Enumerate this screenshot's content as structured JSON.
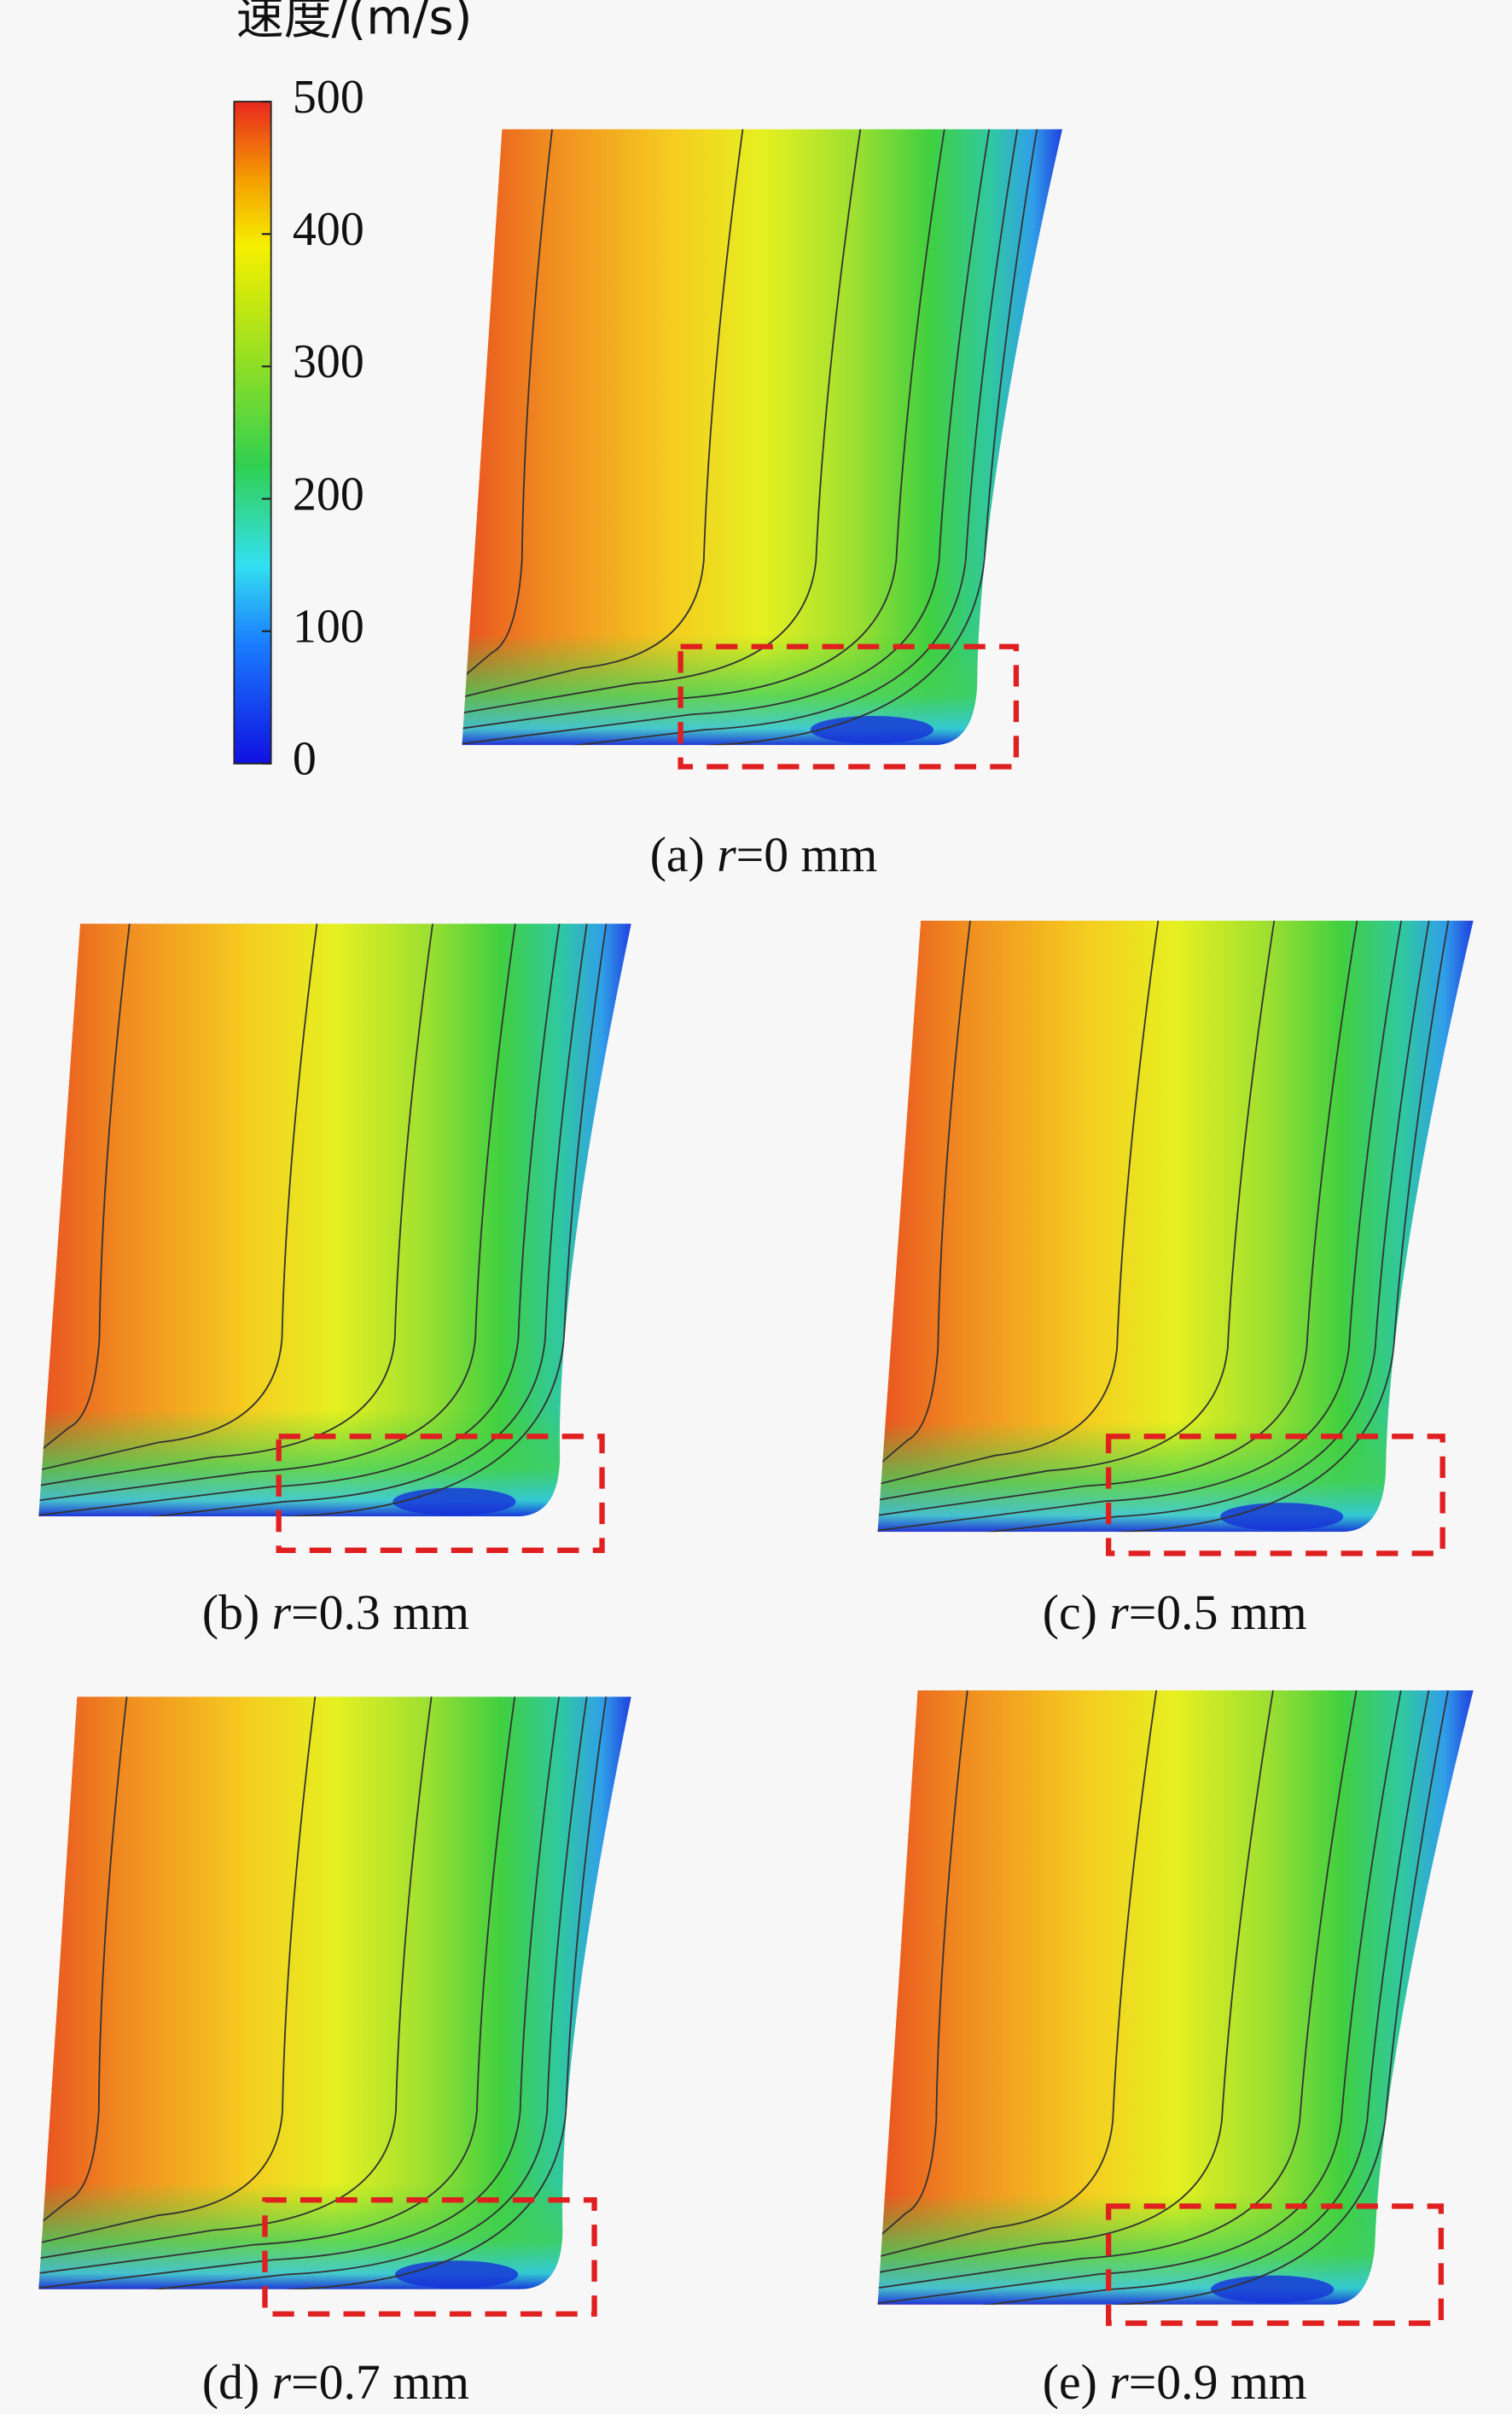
{
  "colorbar": {
    "label": "速度/(m/s)",
    "lim": [
      0,
      500
    ],
    "ticks": [
      0,
      100,
      200,
      300,
      400,
      500
    ]
  },
  "panels": [
    {
      "prefix": "(a) ",
      "variable": "r",
      "suffix": "=0 mm"
    },
    {
      "prefix": "(b) ",
      "variable": "r",
      "suffix": "=0.3 mm"
    },
    {
      "prefix": "(c) ",
      "variable": "r",
      "suffix": "=0.5 mm"
    },
    {
      "prefix": "(d) ",
      "variable": "r",
      "suffix": "=0.7 mm"
    },
    {
      "prefix": "(e) ",
      "variable": "r",
      "suffix": "=0.9 mm"
    }
  ]
}
